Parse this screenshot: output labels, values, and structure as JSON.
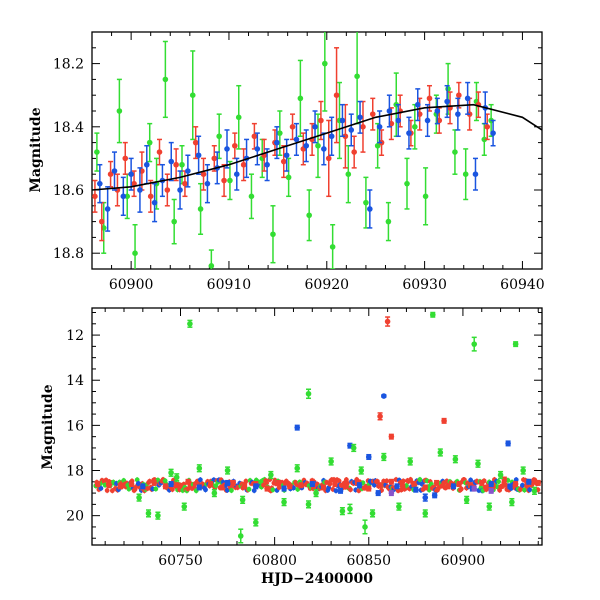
{
  "chart_data": [
    {
      "type": "scatter",
      "panel": "top",
      "title": "",
      "xlabel": "",
      "ylabel": "Magnitude",
      "xlim": [
        60896,
        60942
      ],
      "ylim": [
        18.85,
        18.1
      ],
      "y_axis_inverted": true,
      "grid": false,
      "legend": "none",
      "x_ticks": [
        60900,
        60910,
        60920,
        60930,
        60940
      ],
      "x_tick_labels": [
        "60900",
        "60910",
        "60920",
        "60930",
        "60940"
      ],
      "y_ticks": [
        18.2,
        18.4,
        18.6,
        18.8
      ],
      "y_tick_labels": [
        "18.2",
        "18.4",
        "18.6",
        "18.8"
      ],
      "colors": {
        "green": "#33dd33",
        "red": "#f04030",
        "blue": "#1a55e0",
        "purple": "#8855cc",
        "fit": "#000000"
      },
      "fit_curve": {
        "x": [
          60896,
          60900,
          60905,
          60910,
          60915,
          60920,
          60925,
          60930,
          60935,
          60940,
          60942
        ],
        "y": [
          18.6,
          18.59,
          18.56,
          18.52,
          18.47,
          18.42,
          18.37,
          18.34,
          18.33,
          18.37,
          18.41
        ]
      },
      "series": [
        {
          "color": "green",
          "x": [
            60896.5,
            60897.2,
            60898.8,
            60899.6,
            60900.4,
            60901.9,
            60902.6,
            60903.5,
            60904.4,
            60905.2,
            60906.3,
            60907.1,
            60908.2,
            60909.0,
            60910.1,
            60911.0,
            60912.3,
            60913.4,
            60914.5,
            60915.2,
            60916.1,
            60917.3,
            60918.2,
            60919.1,
            60919.8,
            60920.6,
            60921.3,
            60922.2,
            60923.1,
            60924.0,
            60925.2,
            60926.3,
            60927.1,
            60928.2,
            60929.0,
            60930.1,
            60931.2,
            60932.4,
            60933.1,
            60934.2,
            60935.3,
            60936.1,
            60936.8
          ],
          "y": [
            18.48,
            18.72,
            18.35,
            18.62,
            18.8,
            18.45,
            18.58,
            18.25,
            18.7,
            18.52,
            18.3,
            18.66,
            18.84,
            18.43,
            18.57,
            18.37,
            18.62,
            18.5,
            18.74,
            18.42,
            18.56,
            18.31,
            18.68,
            18.46,
            18.2,
            18.78,
            18.38,
            18.55,
            18.24,
            18.64,
            18.46,
            18.7,
            18.33,
            18.58,
            18.4,
            18.62,
            18.36,
            18.28,
            18.48,
            18.55,
            18.32,
            18.44,
            18.38
          ],
          "err": [
            0.06,
            0.08,
            0.1,
            0.07,
            0.09,
            0.06,
            0.08,
            0.12,
            0.07,
            0.06,
            0.14,
            0.08,
            0.05,
            0.07,
            0.06,
            0.1,
            0.07,
            0.06,
            0.09,
            0.07,
            0.06,
            0.12,
            0.08,
            0.1,
            0.15,
            0.07,
            0.12,
            0.09,
            0.15,
            0.08,
            0.07,
            0.06,
            0.1,
            0.08,
            0.07,
            0.09,
            0.06,
            0.08,
            0.07,
            0.08,
            0.06,
            0.05,
            0.05
          ]
        },
        {
          "color": "red",
          "x": [
            60896.3,
            60897.0,
            60897.9,
            60898.6,
            60899.4,
            60900.3,
            60901.1,
            60902.0,
            60902.9,
            60903.7,
            60904.6,
            60905.5,
            60906.6,
            60907.4,
            60908.5,
            60909.5,
            60910.6,
            60911.5,
            60912.6,
            60913.6,
            60914.7,
            60915.6,
            60916.5,
            60917.6,
            60918.5,
            60919.4,
            60920.2,
            60921.0,
            60921.9,
            60922.8,
            60923.7,
            60924.7,
            60925.6,
            60926.6,
            60927.5,
            60928.6,
            60929.5,
            60930.5,
            60931.5,
            60932.6,
            60933.5,
            60934.6,
            60935.5,
            60936.4
          ],
          "y": [
            18.62,
            18.7,
            18.55,
            18.6,
            18.5,
            18.58,
            18.54,
            18.62,
            18.48,
            18.6,
            18.52,
            18.58,
            18.45,
            18.55,
            18.5,
            18.57,
            18.46,
            18.52,
            18.43,
            18.49,
            18.45,
            18.51,
            18.4,
            18.47,
            18.44,
            18.38,
            18.5,
            18.3,
            18.43,
            18.48,
            18.4,
            18.36,
            18.45,
            18.39,
            18.35,
            18.42,
            18.36,
            18.31,
            18.38,
            18.34,
            18.3,
            18.36,
            18.33,
            18.4
          ],
          "err": [
            0.05,
            0.06,
            0.04,
            0.05,
            0.05,
            0.04,
            0.06,
            0.05,
            0.04,
            0.05,
            0.05,
            0.04,
            0.05,
            0.05,
            0.04,
            0.05,
            0.04,
            0.05,
            0.04,
            0.05,
            0.04,
            0.05,
            0.04,
            0.05,
            0.05,
            0.06,
            0.12,
            0.15,
            0.1,
            0.05,
            0.08,
            0.05,
            0.04,
            0.05,
            0.05,
            0.04,
            0.05,
            0.04,
            0.04,
            0.05,
            0.04,
            0.05,
            0.04,
            0.04
          ]
        },
        {
          "color": "blue",
          "x": [
            60896.8,
            60897.6,
            60898.3,
            60899.2,
            60900.0,
            60900.9,
            60901.6,
            60902.4,
            60903.2,
            60904.1,
            60905.0,
            60905.8,
            60906.9,
            60907.8,
            60908.8,
            60909.8,
            60910.8,
            60911.8,
            60912.9,
            60913.9,
            60914.9,
            60915.9,
            60916.9,
            60917.9,
            60918.8,
            60919.7,
            60920.5,
            60921.6,
            60922.5,
            60923.4,
            60924.4,
            60925.4,
            60926.4,
            60927.3,
            60928.4,
            60929.3,
            60930.3,
            60931.3,
            60932.3,
            60933.4,
            60934.4,
            60935.2,
            60936.2,
            60937.0
          ],
          "y": [
            18.58,
            18.66,
            18.54,
            18.62,
            18.55,
            18.6,
            18.52,
            18.64,
            18.57,
            18.51,
            18.6,
            18.54,
            18.49,
            18.58,
            18.53,
            18.47,
            18.55,
            18.5,
            18.47,
            18.52,
            18.45,
            18.49,
            18.44,
            18.46,
            18.4,
            18.47,
            18.43,
            18.38,
            18.41,
            18.37,
            18.66,
            18.4,
            18.35,
            18.38,
            18.42,
            18.33,
            18.38,
            18.35,
            18.32,
            18.36,
            18.31,
            18.55,
            18.34,
            18.42
          ],
          "err": [
            0.06,
            0.07,
            0.06,
            0.06,
            0.05,
            0.07,
            0.06,
            0.06,
            0.05,
            0.06,
            0.06,
            0.05,
            0.06,
            0.06,
            0.05,
            0.06,
            0.05,
            0.06,
            0.05,
            0.05,
            0.05,
            0.05,
            0.05,
            0.05,
            0.05,
            0.05,
            0.06,
            0.05,
            0.05,
            0.05,
            0.06,
            0.05,
            0.05,
            0.05,
            0.05,
            0.05,
            0.05,
            0.04,
            0.05,
            0.05,
            0.05,
            0.05,
            0.05,
            0.04
          ]
        }
      ]
    },
    {
      "type": "scatter",
      "panel": "bottom",
      "title": "",
      "xlabel": "HJD−2400000",
      "ylabel": "Magnitude",
      "xlim": [
        60703,
        60942
      ],
      "ylim": [
        21.3,
        10.8
      ],
      "y_axis_inverted": true,
      "grid": false,
      "legend": "none",
      "x_ticks": [
        60750,
        60800,
        60850,
        60900
      ],
      "x_tick_labels": [
        "60750",
        "60800",
        "60850",
        "60900"
      ],
      "y_ticks": [
        12,
        14,
        16,
        18,
        20
      ],
      "y_tick_labels": [
        "12",
        "14",
        "16",
        "18",
        "20"
      ],
      "colors": {
        "green": "#33dd33",
        "red": "#f04030",
        "blue": "#1a55e0",
        "purple": "#8855cc"
      },
      "baseline": {
        "x_start": 60705,
        "x_end": 60940,
        "y_mean": 18.65,
        "note_points": "dense band of red, blue and green points along the baseline"
      },
      "series": [
        {
          "color": "red",
          "x": [
            60706,
            60712,
            60718,
            60724,
            60730,
            60736,
            60742,
            60748,
            60754,
            60760,
            60766,
            60772,
            60778,
            60784,
            60790,
            60796,
            60802,
            60808,
            60814,
            60820,
            60826,
            60832,
            60838,
            60844,
            60850,
            60856,
            60862,
            60868,
            60874,
            60880,
            60886,
            60892,
            60898,
            60904,
            60910,
            60916,
            60922,
            60928,
            60934,
            60940,
            60856,
            60860,
            60890,
            60862
          ],
          "y": [
            18.6,
            18.65,
            18.7,
            18.6,
            18.75,
            18.55,
            18.7,
            18.65,
            18.5,
            18.7,
            18.6,
            18.75,
            18.55,
            18.7,
            18.6,
            18.8,
            18.55,
            18.7,
            18.65,
            18.5,
            18.75,
            18.6,
            18.7,
            18.55,
            18.8,
            18.65,
            18.5,
            18.7,
            18.6,
            18.75,
            18.55,
            18.7,
            18.6,
            18.65,
            18.55,
            18.7,
            18.4,
            18.6,
            18.5,
            18.55,
            15.6,
            11.4,
            15.8,
            16.5
          ],
          "err": [
            0.1,
            0.1,
            0.1,
            0.1,
            0.1,
            0.1,
            0.1,
            0.1,
            0.1,
            0.1,
            0.1,
            0.1,
            0.1,
            0.1,
            0.1,
            0.1,
            0.1,
            0.1,
            0.1,
            0.1,
            0.1,
            0.1,
            0.1,
            0.1,
            0.1,
            0.1,
            0.1,
            0.1,
            0.1,
            0.1,
            0.1,
            0.1,
            0.1,
            0.1,
            0.1,
            0.1,
            0.1,
            0.1,
            0.1,
            0.1,
            0.15,
            0.2,
            0.1,
            0.1
          ]
        },
        {
          "color": "blue",
          "x": [
            60730,
            60745,
            60760,
            60775,
            60790,
            60805,
            60820,
            60835,
            60845,
            60855,
            60865,
            60875,
            60885,
            60895,
            60905,
            60915,
            60925,
            60935,
            60812,
            60840,
            60858,
            60924,
            60850,
            60880
          ],
          "y": [
            18.7,
            18.6,
            18.75,
            18.55,
            18.7,
            18.8,
            18.6,
            18.9,
            18.65,
            19.0,
            18.7,
            18.85,
            19.1,
            18.7,
            18.8,
            18.6,
            18.7,
            18.5,
            16.1,
            16.9,
            14.7,
            16.8,
            17.4,
            19.2
          ],
          "err": [
            0.1,
            0.1,
            0.1,
            0.1,
            0.1,
            0.1,
            0.1,
            0.1,
            0.1,
            0.1,
            0.1,
            0.1,
            0.1,
            0.1,
            0.1,
            0.1,
            0.1,
            0.1,
            0.1,
            0.1,
            0.05,
            0.1,
            0.1,
            0.15
          ]
        },
        {
          "color": "green",
          "x": [
            60728,
            60733,
            60738,
            60745,
            60748,
            60752,
            60760,
            60768,
            60775,
            60783,
            60790,
            60798,
            60805,
            60812,
            60818,
            60822,
            60830,
            60836,
            60842,
            60846,
            60852,
            60858,
            60866,
            60872,
            60880,
            60888,
            60896,
            60902,
            60908,
            60914,
            60920,
            60926,
            60932,
            60938,
            60755,
            60818,
            60884,
            60906,
            60928,
            60782,
            60840,
            60848
          ],
          "y": [
            19.2,
            19.9,
            20.0,
            18.1,
            18.3,
            19.6,
            17.9,
            19.0,
            18.0,
            19.3,
            20.3,
            18.2,
            19.4,
            17.9,
            19.5,
            19.0,
            17.6,
            19.8,
            17.0,
            18.0,
            19.9,
            17.4,
            19.6,
            17.6,
            19.9,
            17.2,
            17.5,
            19.3,
            17.7,
            19.6,
            18.2,
            19.4,
            18.0,
            18.9,
            11.5,
            14.6,
            11.1,
            12.4,
            12.4,
            20.9,
            19.7,
            20.5
          ],
          "err": [
            0.15,
            0.15,
            0.15,
            0.15,
            0.15,
            0.15,
            0.15,
            0.15,
            0.15,
            0.15,
            0.15,
            0.15,
            0.15,
            0.15,
            0.15,
            0.15,
            0.15,
            0.15,
            0.15,
            0.15,
            0.15,
            0.15,
            0.15,
            0.15,
            0.15,
            0.15,
            0.15,
            0.15,
            0.15,
            0.15,
            0.15,
            0.15,
            0.15,
            0.15,
            0.15,
            0.2,
            0.1,
            0.3,
            0.1,
            0.3,
            0.2,
            0.3
          ]
        },
        {
          "color": "purple",
          "x": [
            60862,
            60906,
            60915
          ],
          "y": [
            19.0,
            18.8,
            18.9
          ],
          "err": [
            0.1,
            0.1,
            0.1
          ]
        }
      ]
    }
  ]
}
